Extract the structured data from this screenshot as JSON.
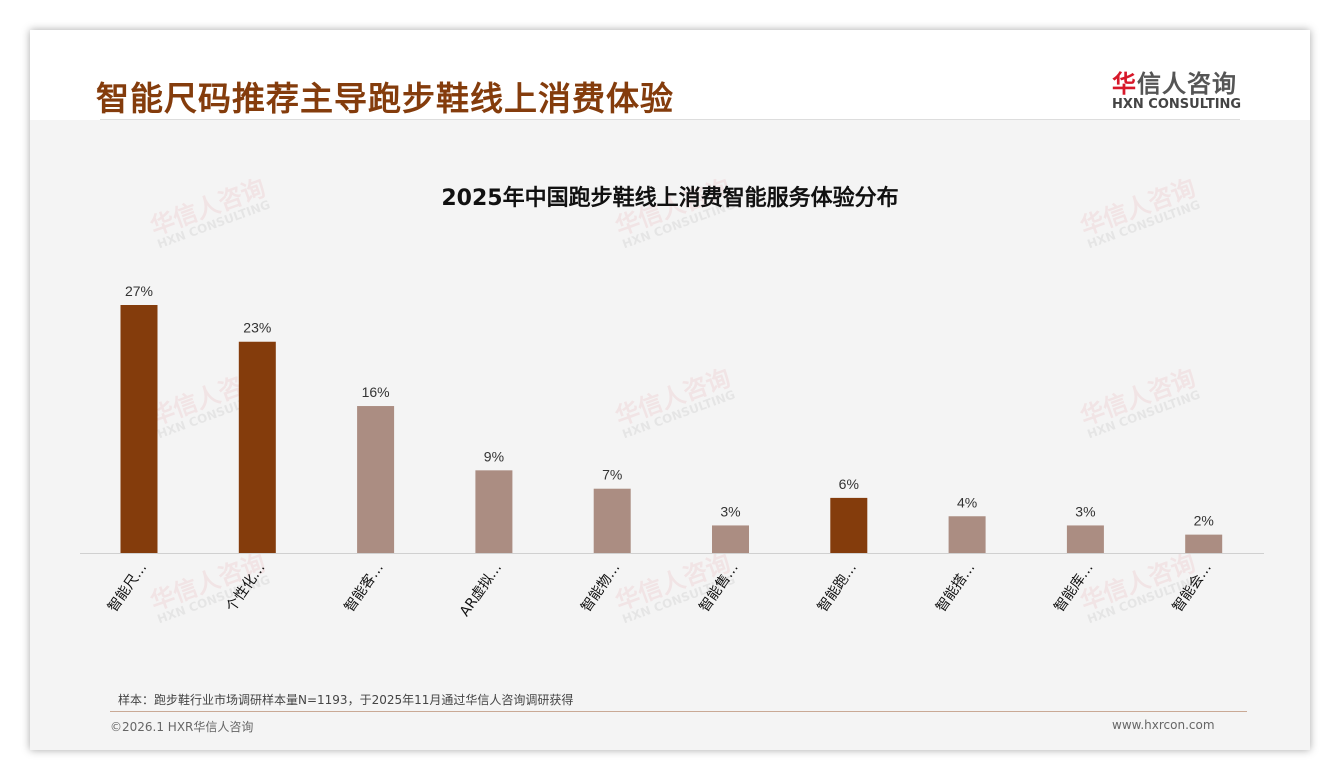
{
  "header": {
    "title": "智能尺码推荐主导跑步鞋线上消费体验",
    "logo_cn_accent": "华",
    "logo_cn_rest": "信人咨询",
    "logo_en": "HXN CONSULTING"
  },
  "chart_data": {
    "type": "bar",
    "title": "2025年中国跑步鞋线上消费智能服务体验分布",
    "categories": [
      "智能尺…",
      "个性化…",
      "智能客…",
      "AR虚拟…",
      "智能物…",
      "智能售…",
      "智能跑…",
      "智能搭…",
      "智能库…",
      "智能会…"
    ],
    "values": [
      27,
      23,
      16,
      9,
      7,
      3,
      6,
      4,
      3,
      2
    ],
    "data_labels": [
      "27%",
      "23%",
      "16%",
      "9%",
      "7%",
      "3%",
      "6%",
      "4%",
      "3%",
      "2%"
    ],
    "highlighted": [
      true,
      true,
      false,
      false,
      false,
      false,
      true,
      false,
      false,
      false
    ],
    "colors": {
      "highlight": "#843c0c",
      "normal": "#ab8d82"
    },
    "xlabel": "",
    "ylabel": "",
    "ylim": [
      0,
      27
    ],
    "grid": false
  },
  "footer": {
    "note": "样本：跑步鞋行业市场调研样本量N=1193，于2025年11月通过华信人咨询调研获得",
    "copyright": "©2026.1 HXR华信人咨询",
    "url": "www.hxrcon.com"
  }
}
